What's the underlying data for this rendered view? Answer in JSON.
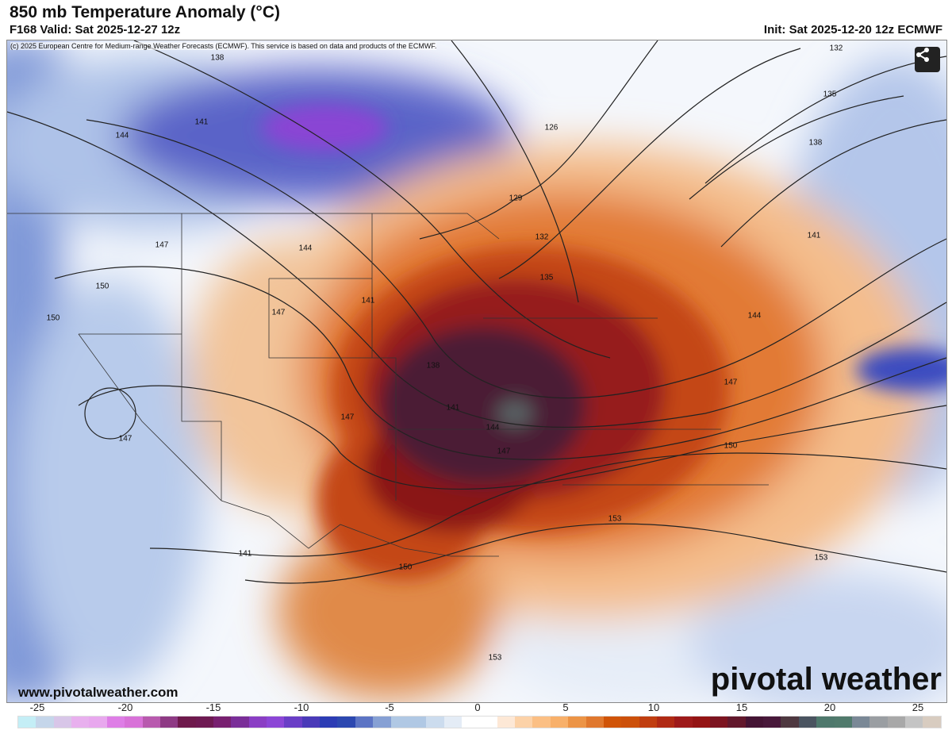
{
  "header": {
    "title": "850 mb Temperature Anomaly (°C)",
    "valid": "F168 Valid: Sat 2025-12-27 12z",
    "init": "Init: Sat 2025-12-20 12z ECMWF"
  },
  "map": {
    "copyright": "(c) 2025 European Centre for Medium-range Weather Forecasts (ECMWF). This service is based on data and products of the ECMWF.",
    "share_icon": "share-icon",
    "website": "www.pivotalweather.com",
    "logo": "pivotal weather",
    "contour_labels": [
      "138",
      "141",
      "144",
      "147",
      "147",
      "150",
      "150",
      "144",
      "141",
      "147",
      "147",
      "126",
      "129",
      "132",
      "135",
      "138",
      "141",
      "144",
      "147",
      "150",
      "153",
      "153",
      "150",
      "147",
      "144",
      "141",
      "138",
      "132",
      "135",
      "138",
      "141",
      "144",
      "147",
      "150",
      "153",
      "153"
    ]
  },
  "colorbar": {
    "ticks": [
      "-25",
      "-20",
      "-15",
      "-10",
      "-5",
      "0",
      "5",
      "10",
      "15",
      "20",
      "25"
    ],
    "colors": [
      "#c4eef6",
      "#c5d6ea",
      "#d8c6e8",
      "#e8b0ee",
      "#e8a8ee",
      "#de7ee6",
      "#d872d8",
      "#b85aae",
      "#8e3a84",
      "#6e1a4c",
      "#6e1a52",
      "#782070",
      "#7a2e98",
      "#8a3ec4",
      "#8c46d6",
      "#6a3ec6",
      "#4a3ab8",
      "#2c3cb4",
      "#2c48b0",
      "#5c74c4",
      "#86a0d4",
      "#b0c8e4",
      "#b0c8e4",
      "#ccdcee",
      "#e4ecf6",
      "#ffffff",
      "#ffffff",
      "#fde8d6",
      "#fcd2a8",
      "#fbbf84",
      "#f8b06a",
      "#ec9446",
      "#e0782e",
      "#d05408",
      "#cc500a",
      "#c03e10",
      "#b02a14",
      "#9e1a1a",
      "#941414",
      "#7c1420",
      "#62182c",
      "#441434",
      "#48183a",
      "#4e3840",
      "#4a5460",
      "#4e786c",
      "#507a6c",
      "#7a8896",
      "#9a9ea2",
      "#a8a8a8",
      "#c4c4c4",
      "#d8ccc0"
    ]
  }
}
